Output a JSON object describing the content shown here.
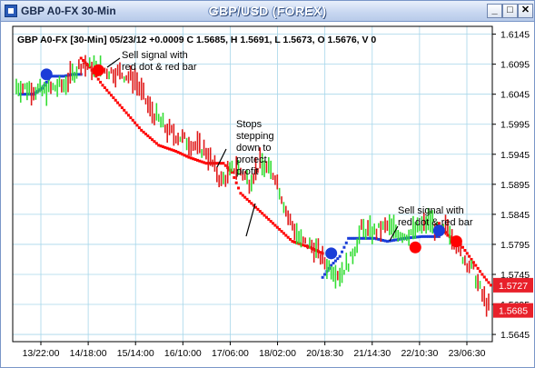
{
  "window": {
    "title": "GBP A0-FX 30-Min",
    "chart_heading": "GBP/USD (FOREX)",
    "buttons": {
      "minimize": "_",
      "maximize": "□",
      "close": "✕"
    }
  },
  "header_line": "GBP A0-FX [30-Min] 05/23/12  +0.0009 C 1.5685, H 1.5691, L 1.5673, O 1.5676, V 0",
  "annotations": [
    {
      "id": "ann1",
      "lines": [
        "Sell signal with",
        "red dot & red bar"
      ]
    },
    {
      "id": "ann2",
      "lines": [
        "Stops",
        "stepping",
        "down to",
        "protect",
        "profit"
      ]
    },
    {
      "id": "ann3",
      "lines": [
        "Sell signal with",
        "red dot & red bar"
      ]
    }
  ],
  "price_tags": [
    {
      "value": "1.5727",
      "color": "#e8202a"
    },
    {
      "value": "1.5685",
      "color": "#e8202a"
    }
  ],
  "colors": {
    "up_bar": "#33dd33",
    "down_bar": "#e01b1b",
    "long_stop": "#1a3dd8",
    "short_stop": "#ff0000",
    "grid": "#a6d6ea",
    "plot_bg": "#ffffff"
  },
  "chart_data": {
    "type": "bar",
    "instrument": "GBP/USD",
    "timeframe": "30-Min",
    "x_tick_labels": [
      "13/22:00",
      "14/18:00",
      "15/14:00",
      "16/10:00",
      "17/06:00",
      "18/02:00",
      "20/18:30",
      "21/14:30",
      "22/10:30",
      "23/06:30"
    ],
    "y_ticks": [
      1.5645,
      1.5695,
      1.5745,
      1.5795,
      1.5845,
      1.5895,
      1.5945,
      1.5995,
      1.6045,
      1.6095,
      1.6145
    ],
    "y_tick_labels": [
      "1.5645",
      "1.5695",
      "1.5745",
      "1.5795",
      "1.5845",
      "1.5895",
      "1.5945",
      "1.5995",
      "1.6045",
      "1.6095",
      "1.6145"
    ],
    "ylim": [
      1.5633,
      1.6158
    ],
    "grid": true,
    "bar_count": 220,
    "price_path": [
      [
        0,
        1.6058
      ],
      [
        12,
        1.605
      ],
      [
        22,
        1.606
      ],
      [
        30,
        1.6095
      ],
      [
        40,
        1.6085
      ],
      [
        48,
        1.608
      ],
      [
        55,
        1.607
      ],
      [
        62,
        1.602
      ],
      [
        70,
        1.5985
      ],
      [
        80,
        1.5965
      ],
      [
        88,
        1.595
      ],
      [
        95,
        1.59
      ],
      [
        102,
        1.5925
      ],
      [
        108,
        1.59
      ],
      [
        113,
        1.593
      ],
      [
        120,
        1.591
      ],
      [
        126,
        1.584
      ],
      [
        132,
        1.58
      ],
      [
        138,
        1.579
      ],
      [
        144,
        1.576
      ],
      [
        150,
        1.5745
      ],
      [
        155,
        1.577
      ],
      [
        160,
        1.582
      ],
      [
        166,
        1.5815
      ],
      [
        172,
        1.5825
      ],
      [
        180,
        1.581
      ],
      [
        186,
        1.582
      ],
      [
        192,
        1.5835
      ],
      [
        196,
        1.581
      ],
      [
        200,
        1.5825
      ],
      [
        206,
        1.578
      ],
      [
        212,
        1.575
      ],
      [
        216,
        1.571
      ],
      [
        220,
        1.5685
      ]
    ],
    "long_stop_path": [
      [
        2,
        1.6045
      ],
      [
        8,
        1.6045
      ],
      [
        12,
        1.6055
      ],
      [
        16,
        1.6075
      ],
      [
        22,
        1.6075
      ],
      [
        26,
        1.6078
      ],
      [
        30,
        1.6078
      ],
      [
        142,
        1.574
      ],
      [
        146,
        1.576
      ],
      [
        150,
        1.5775
      ],
      [
        154,
        1.5805
      ],
      [
        160,
        1.5805
      ],
      [
        166,
        1.5805
      ],
      [
        172,
        1.58
      ],
      [
        180,
        1.5805
      ],
      [
        188,
        1.5808
      ],
      [
        196,
        1.5808
      ]
    ],
    "long_stop_segments": [
      [
        2,
        30
      ],
      [
        142,
        196
      ]
    ],
    "short_stop_path": [
      [
        30,
        1.6105
      ],
      [
        34,
        1.609
      ],
      [
        40,
        1.606
      ],
      [
        46,
        1.6035
      ],
      [
        52,
        1.601
      ],
      [
        58,
        1.5985
      ],
      [
        66,
        1.596
      ],
      [
        74,
        1.595
      ],
      [
        80,
        1.594
      ],
      [
        88,
        1.593
      ],
      [
        96,
        1.593
      ],
      [
        100,
        1.5915
      ],
      [
        104,
        1.588
      ],
      [
        110,
        1.586
      ],
      [
        116,
        1.584
      ],
      [
        122,
        1.582
      ],
      [
        128,
        1.58
      ],
      [
        136,
        1.579
      ],
      [
        142,
        1.578
      ],
      [
        196,
        1.583
      ],
      [
        200,
        1.581
      ],
      [
        206,
        1.5795
      ],
      [
        212,
        1.5765
      ],
      [
        216,
        1.5745
      ],
      [
        220,
        1.5727
      ]
    ],
    "short_stop_segments": [
      [
        30,
        142
      ],
      [
        196,
        220
      ]
    ],
    "signal_dots": [
      {
        "bar": 14,
        "price": 1.6078,
        "type": "buy"
      },
      {
        "bar": 38,
        "price": 1.6085,
        "type": "sell"
      },
      {
        "bar": 146,
        "price": 1.578,
        "type": "buy"
      },
      {
        "bar": 185,
        "price": 1.579,
        "type": "sell"
      },
      {
        "bar": 196,
        "price": 1.5818,
        "type": "buy"
      },
      {
        "bar": 204,
        "price": 1.58,
        "type": "sell"
      }
    ]
  }
}
